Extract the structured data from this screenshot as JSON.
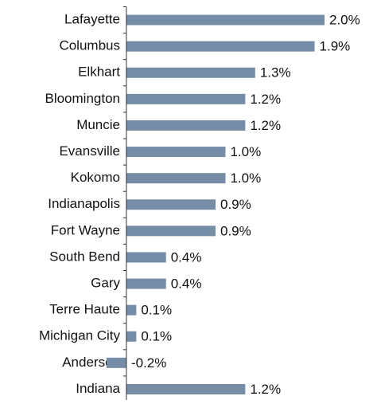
{
  "chart_data": {
    "type": "bar",
    "orientation": "horizontal",
    "categories": [
      "Lafayette",
      "Columbus",
      "Elkhart",
      "Bloomington",
      "Muncie",
      "Evansville",
      "Kokomo",
      "Indianapolis",
      "Fort Wayne",
      "South Bend",
      "Gary",
      "Terre Haute",
      "Michigan City",
      "Anderson",
      "Indiana"
    ],
    "values": [
      2.0,
      1.9,
      1.3,
      1.2,
      1.2,
      1.0,
      1.0,
      0.9,
      0.9,
      0.4,
      0.4,
      0.1,
      0.1,
      -0.2,
      1.2
    ],
    "value_labels": [
      "2.0%",
      "1.9%",
      "1.3%",
      "1.2%",
      "1.2%",
      "1.0%",
      "1.0%",
      "0.9%",
      "0.9%",
      "0.4%",
      "0.4%",
      "0.1%",
      "0.1%",
      "-0.2%",
      "1.2%"
    ],
    "color": "#768da8",
    "xlim": [
      -0.2,
      2.0
    ]
  }
}
